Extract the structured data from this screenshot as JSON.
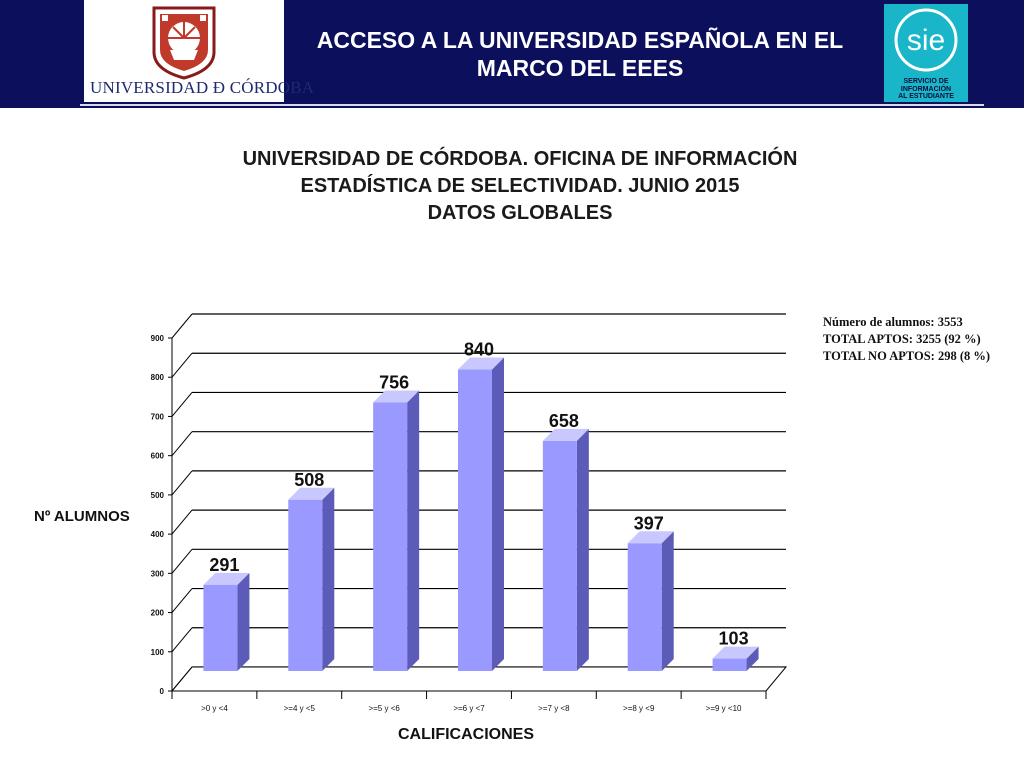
{
  "header": {
    "title": "ACCESO A LA UNIVERSIDAD ESPAÑOLA EN EL MARCO DEL EEES",
    "logo_left_text": "UNIVERSIDAD Ð CÓRDOBA",
    "logo_right_text": "sie",
    "logo_right_caption": [
      "SERVICIO DE",
      "INFORMACIÓN",
      "AL ESTUDIANTE"
    ],
    "banner_color": "#0b0f5c",
    "sie_color": "#19b5c9"
  },
  "chart_title_lines": [
    "UNIVERSIDAD DE CÓRDOBA. OFICINA DE INFORMACIÓN",
    "ESTADÍSTICA DE SELECTIVIDAD. JUNIO 2015",
    "DATOS GLOBALES"
  ],
  "stats": [
    "Número de alumnos: 3553",
    "TOTAL APTOS: 3255 (92 %)",
    "TOTAL NO APTOS: 298 (8 %)"
  ],
  "chart_data": {
    "type": "bar",
    "categories": [
      ">0 y <4",
      ">=4 y <5",
      ">=5 y <6",
      ">=6 y <7",
      ">=7 y <8",
      ">=8 y <9",
      ">=9 y <10"
    ],
    "values": [
      291,
      508,
      756,
      840,
      658,
      397,
      103
    ],
    "xlabel": "CALIFICACIONES",
    "ylabel": "Nº ALUMNOS",
    "ylim": [
      0,
      900
    ],
    "yticks": [
      0,
      100,
      200,
      300,
      400,
      500,
      600,
      700,
      800,
      900
    ],
    "grid": true,
    "bar_color": "#9999ff",
    "bar_side_color": "#5c5cb8",
    "bar_top_color": "#c8c8ff"
  }
}
